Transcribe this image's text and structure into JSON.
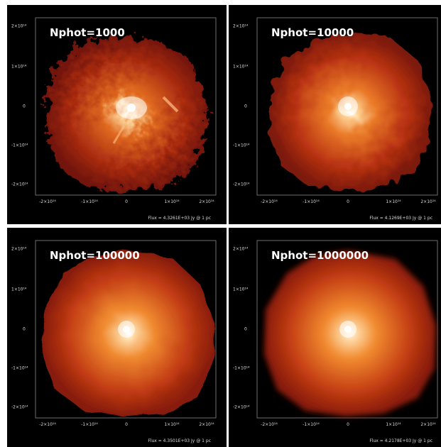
{
  "panels": [
    {
      "title": "Nphot=1000",
      "flux": "Flux = 4.3261E+03 Jy @ 1 pc"
    },
    {
      "title": "Nphot=10000",
      "flux": "Flux = 4.1269E+03 Jy @ 1 pc"
    },
    {
      "title": "Nphot=100000",
      "flux": "Flux = 4.3501E+03 Jy @ 1 pc"
    },
    {
      "title": "Nphot=1000000",
      "flux": "Flux = 4.2178E+03 Jy @ 1 pc"
    }
  ],
  "axis": {
    "x_ticks": [
      "-2×10¹⁴",
      "-1×10¹⁴",
      "0",
      "1×10¹⁴",
      "2×10¹⁴"
    ],
    "y_ticks": [
      "2×10¹⁴",
      "1×10¹⁴",
      "0",
      "-1×10¹⁴",
      "-2×10¹⁴"
    ]
  },
  "colors": {
    "background": "#000000",
    "core": "#ffffff",
    "mid": "#ff8c1a",
    "outer": "#b02000"
  }
}
